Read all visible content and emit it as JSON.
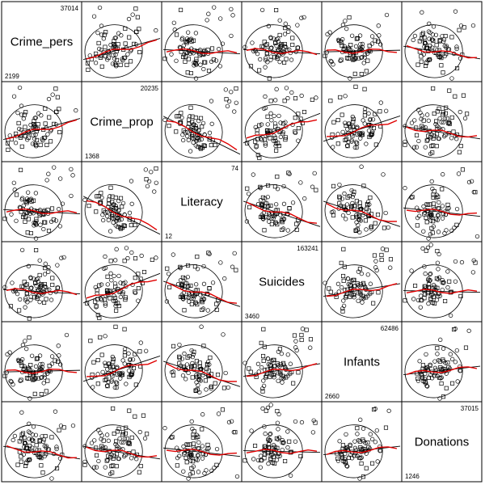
{
  "chart_data": {
    "type": "scatter",
    "kind": "scatterplot-matrix",
    "variables": [
      "Crime_pers",
      "Crime_prop",
      "Literacy",
      "Suicides",
      "Infants",
      "Donations"
    ],
    "ranges": [
      {
        "min": "2199",
        "max": "37014"
      },
      {
        "min": "1368",
        "max": "20235"
      },
      {
        "min": "12",
        "max": "74"
      },
      {
        "min": "3460",
        "max": "163241"
      },
      {
        "min": "2660",
        "max": "62486"
      },
      {
        "min": "1246",
        "max": "37015"
      }
    ],
    "markers": [
      "circle",
      "square"
    ],
    "fit_lines": {
      "linear_color": "#000000",
      "smoother_color": "#e00000"
    },
    "data_ellipse": true
  },
  "colors": {
    "background": "#ffffff",
    "frame": "#000000",
    "points": "#000000",
    "linear_fit": "#000000",
    "smooth_fit": "#e00000"
  }
}
